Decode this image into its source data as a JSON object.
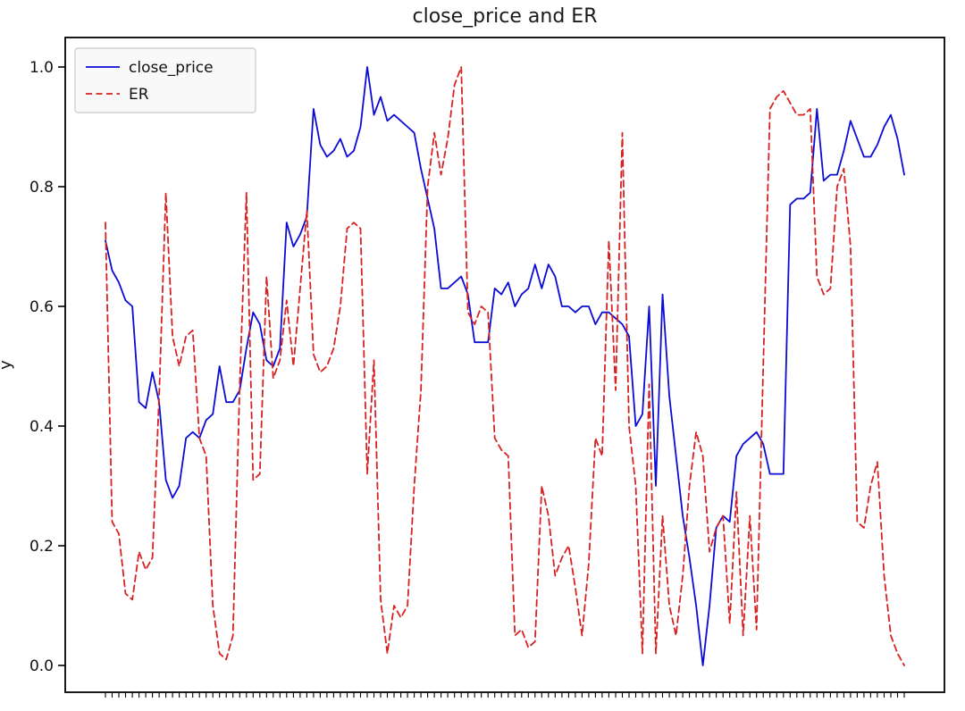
{
  "chart_data": {
    "type": "line",
    "title": "close_price and ER",
    "xlabel": "",
    "ylabel": "y",
    "ylim": [
      0.0,
      1.0
    ],
    "yticks": [
      "0.0",
      "0.2",
      "0.4",
      "0.6",
      "0.8",
      "1.0"
    ],
    "grid": false,
    "x_tick_labels_visible": false,
    "legend": {
      "position": "upper left",
      "entries": [
        "close_price",
        "ER"
      ]
    },
    "colors": {
      "close_price": "#0b0bd6",
      "er": "#d62222",
      "axis": "#000000",
      "legend_border": "#c8c8c8",
      "legend_bg": "#f8f8f8"
    },
    "series": [
      {
        "name": "close_price",
        "color": "#0b0bd6",
        "line_style": "solid",
        "values": [
          0.71,
          0.66,
          0.64,
          0.61,
          0.6,
          0.44,
          0.43,
          0.49,
          0.44,
          0.31,
          0.28,
          0.3,
          0.38,
          0.39,
          0.38,
          0.41,
          0.42,
          0.5,
          0.44,
          0.44,
          0.46,
          0.53,
          0.59,
          0.57,
          0.51,
          0.5,
          0.53,
          0.74,
          0.7,
          0.72,
          0.75,
          0.93,
          0.87,
          0.85,
          0.86,
          0.88,
          0.85,
          0.86,
          0.9,
          1.0,
          0.92,
          0.95,
          0.91,
          0.92,
          0.91,
          0.9,
          0.89,
          0.83,
          0.78,
          0.73,
          0.63,
          0.63,
          0.64,
          0.65,
          0.62,
          0.54,
          0.54,
          0.54,
          0.63,
          0.62,
          0.64,
          0.6,
          0.62,
          0.63,
          0.67,
          0.63,
          0.67,
          0.65,
          0.6,
          0.6,
          0.59,
          0.6,
          0.6,
          0.57,
          0.59,
          0.59,
          0.58,
          0.57,
          0.55,
          0.4,
          0.42,
          0.6,
          0.3,
          0.62,
          0.45,
          0.35,
          0.25,
          0.18,
          0.1,
          0.0,
          0.1,
          0.23,
          0.25,
          0.24,
          0.35,
          0.37,
          0.38,
          0.39,
          0.37,
          0.32,
          0.32,
          0.32,
          0.77,
          0.78,
          0.78,
          0.79,
          0.93,
          0.81,
          0.82,
          0.82,
          0.86,
          0.91,
          0.88,
          0.85,
          0.85,
          0.87,
          0.9,
          0.92,
          0.88,
          0.82
        ]
      },
      {
        "name": "ER",
        "color": "#d62222",
        "line_style": "dashed",
        "values": [
          0.74,
          0.24,
          0.22,
          0.12,
          0.11,
          0.19,
          0.16,
          0.18,
          0.45,
          0.79,
          0.55,
          0.5,
          0.55,
          0.56,
          0.38,
          0.35,
          0.1,
          0.02,
          0.01,
          0.05,
          0.47,
          0.79,
          0.31,
          0.32,
          0.65,
          0.48,
          0.51,
          0.61,
          0.5,
          0.63,
          0.76,
          0.52,
          0.49,
          0.5,
          0.53,
          0.6,
          0.73,
          0.74,
          0.73,
          0.32,
          0.51,
          0.11,
          0.02,
          0.1,
          0.08,
          0.1,
          0.3,
          0.46,
          0.8,
          0.89,
          0.82,
          0.88,
          0.97,
          1.0,
          0.59,
          0.57,
          0.6,
          0.59,
          0.38,
          0.36,
          0.35,
          0.05,
          0.06,
          0.03,
          0.04,
          0.3,
          0.25,
          0.15,
          0.18,
          0.2,
          0.13,
          0.05,
          0.17,
          0.38,
          0.35,
          0.71,
          0.46,
          0.89,
          0.4,
          0.3,
          0.02,
          0.47,
          0.02,
          0.25,
          0.1,
          0.05,
          0.15,
          0.3,
          0.39,
          0.35,
          0.19,
          0.23,
          0.25,
          0.07,
          0.29,
          0.05,
          0.25,
          0.06,
          0.5,
          0.93,
          0.95,
          0.96,
          0.94,
          0.92,
          0.92,
          0.93,
          0.65,
          0.62,
          0.63,
          0.8,
          0.83,
          0.7,
          0.24,
          0.23,
          0.3,
          0.34,
          0.15,
          0.05,
          0.02,
          0.0
        ]
      }
    ]
  }
}
